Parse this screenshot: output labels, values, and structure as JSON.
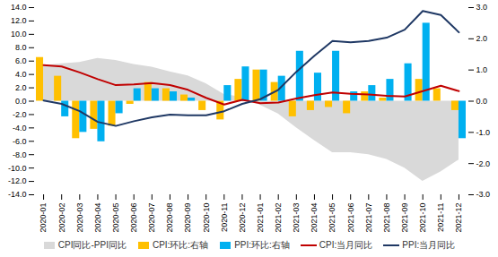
{
  "chart_data": {
    "type": "combo",
    "categories": [
      "2020-01",
      "2020-02",
      "2020-03",
      "2020-04",
      "2020-05",
      "2020-06",
      "2020-07",
      "2020-08",
      "2020-09",
      "2020-10",
      "2020-11",
      "2020-12",
      "2021-01",
      "2021-02",
      "2021-03",
      "2021-04",
      "2021-05",
      "2021-06",
      "2021-07",
      "2021-08",
      "2021-09",
      "2021-10",
      "2021-11",
      "2021-12"
    ],
    "series": [
      {
        "name": "CPI同比-PPI同比",
        "type": "area",
        "color": "#d9d9d9",
        "values": [
          5.3,
          5.6,
          5.8,
          6.4,
          6.1,
          5.5,
          5.1,
          4.4,
          3.8,
          2.6,
          1.0,
          0.6,
          -0.6,
          -1.9,
          -4.0,
          -5.9,
          -7.7,
          -7.7,
          -8.0,
          -8.7,
          -10.0,
          -12.0,
          -10.6,
          -8.8
        ]
      },
      {
        "name": "CPI:环比:右轴",
        "type": "bar",
        "axis": "y2",
        "color": "#ffc000",
        "values": [
          1.4,
          0.8,
          -1.2,
          -0.9,
          -0.8,
          -0.1,
          0.6,
          0.4,
          0.2,
          -0.3,
          -0.6,
          0.7,
          1.0,
          0.6,
          -0.5,
          -0.3,
          -0.2,
          -0.4,
          0.3,
          0.1,
          0.0,
          0.7,
          0.4,
          -0.3
        ]
      },
      {
        "name": "PPI:环比:右轴",
        "type": "bar",
        "axis": "y2",
        "color": "#00b0f0",
        "values": [
          0.0,
          -0.5,
          -1.0,
          -1.3,
          -0.4,
          0.4,
          0.4,
          0.3,
          0.1,
          0.0,
          0.5,
          1.1,
          1.0,
          0.8,
          1.6,
          0.9,
          1.6,
          0.3,
          0.5,
          0.7,
          1.2,
          2.5,
          0.0,
          -1.2
        ]
      },
      {
        "name": "CPI:当月同比",
        "type": "line",
        "color": "#c00000",
        "values": [
          5.4,
          5.2,
          4.3,
          3.3,
          2.4,
          2.5,
          2.7,
          2.4,
          1.7,
          0.5,
          -0.5,
          0.2,
          -0.3,
          -0.2,
          0.4,
          0.9,
          1.3,
          1.1,
          1.0,
          0.8,
          0.7,
          1.5,
          2.3,
          1.5
        ]
      },
      {
        "name": "PPI:当月同比",
        "type": "line",
        "color": "#1f3864",
        "values": [
          0.1,
          -0.4,
          -1.5,
          -3.1,
          -3.7,
          -3.0,
          -2.4,
          -2.0,
          -2.1,
          -2.1,
          -1.5,
          -0.4,
          0.3,
          1.7,
          4.4,
          6.8,
          9.0,
          8.8,
          9.0,
          9.5,
          10.7,
          13.5,
          12.9,
          10.3
        ]
      }
    ],
    "ylim": [
      -14,
      14
    ],
    "yticks": [
      {
        "value": -14,
        "label": "-14.0"
      },
      {
        "value": -12,
        "label": "-12.0"
      },
      {
        "value": -10,
        "label": "-10.0"
      },
      {
        "value": -8,
        "label": "-8.0"
      },
      {
        "value": -6,
        "label": "-6.0"
      },
      {
        "value": -4,
        "label": "-4.0"
      },
      {
        "value": -2,
        "label": "-2.0"
      },
      {
        "value": 0,
        "label": "0.0"
      },
      {
        "value": 2,
        "label": "2.0"
      },
      {
        "value": 4,
        "label": "4.0"
      },
      {
        "value": 6,
        "label": "6.0"
      },
      {
        "value": 8,
        "label": "8.0"
      },
      {
        "value": 10,
        "label": "10.0"
      },
      {
        "value": 12,
        "label": "12.0"
      },
      {
        "value": 14,
        "label": "14.0"
      }
    ],
    "y2lim": [
      -3,
      3
    ],
    "y2ticks": [
      {
        "value": -3,
        "label": "-3.0"
      },
      {
        "value": -2,
        "label": "-2.0"
      },
      {
        "value": -1,
        "label": "-1.0"
      },
      {
        "value": 0,
        "label": "0.0"
      },
      {
        "value": 1,
        "label": "1.0"
      },
      {
        "value": 2,
        "label": "2.0"
      },
      {
        "value": 3,
        "label": "3.0"
      }
    ],
    "grid": false,
    "legend": "bottom"
  }
}
